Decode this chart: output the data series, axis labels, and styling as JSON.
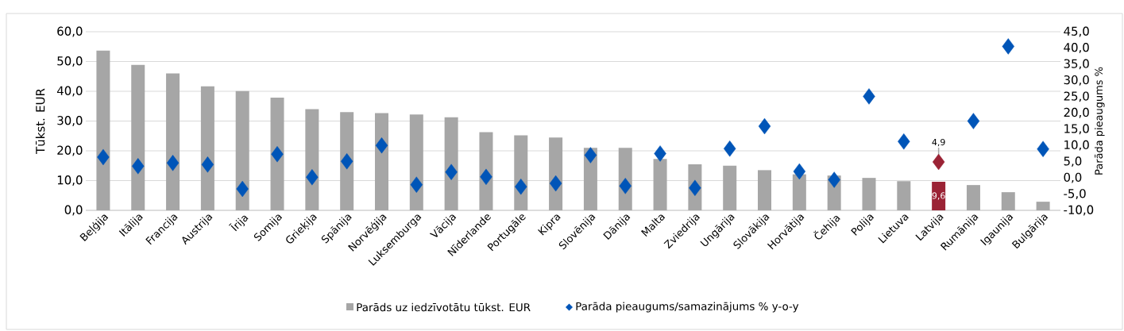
{
  "chart_data": {
    "type": "bar",
    "ylabel": "Tūkst. EUR",
    "y2label": "Parāda pieaugums %",
    "categories": [
      "Beļģija",
      "Itālija",
      "Francija",
      "Austrija",
      "Īrija",
      "Somija",
      "Grieķija",
      "Spānija",
      "Norvēģija",
      "Luksemburga",
      "Vācija",
      "Nīderlande",
      "Portugāle",
      "Kipra",
      "Slovēnija",
      "Dānija",
      "Malta",
      "Zviedrija",
      "Ungārija",
      "Slovākija",
      "Horvātija",
      "Čehija",
      "Polija",
      "Lietuva",
      "Latvija",
      "Rumānija",
      "Igaunija",
      "Bulgārija"
    ],
    "series": [
      {
        "name": "Parāds uz iedzīvotātu tūkst. EUR",
        "color": "#a6a6a6",
        "colors": [
          "#a6a6a6",
          "#a6a6a6",
          "#a6a6a6",
          "#a6a6a6",
          "#a6a6a6",
          "#a6a6a6",
          "#a6a6a6",
          "#a6a6a6",
          "#a6a6a6",
          "#a6a6a6",
          "#a6a6a6",
          "#a6a6a6",
          "#a6a6a6",
          "#a6a6a6",
          "#a6a6a6",
          "#a6a6a6",
          "#a6a6a6",
          "#a6a6a6",
          "#a6a6a6",
          "#a6a6a6",
          "#a6a6a6",
          "#a6a6a6",
          "#a6a6a6",
          "#a6a6a6",
          "#9b2335",
          "#a6a6a6",
          "#a6a6a6",
          "#a6a6a6"
        ],
        "values": [
          53.7,
          48.9,
          46.0,
          41.7,
          40.1,
          37.9,
          34.0,
          33.0,
          32.7,
          32.2,
          31.3,
          26.3,
          25.2,
          24.5,
          21.0,
          21.0,
          17.3,
          15.5,
          15.0,
          13.5,
          12.1,
          11.7,
          10.9,
          9.8,
          9.6,
          8.5,
          6.1,
          2.9
        ],
        "value_labels": [
          null,
          null,
          null,
          null,
          null,
          null,
          null,
          null,
          null,
          null,
          null,
          null,
          null,
          null,
          null,
          null,
          null,
          null,
          null,
          null,
          null,
          null,
          null,
          null,
          "9,6",
          null,
          null,
          null
        ]
      },
      {
        "name": "Parāda pieaugums/samazinājums % y-o-y",
        "type": "scatter",
        "axis": "y2",
        "marker": "diamond",
        "color": "#0055b8",
        "colors": [
          "#0055b8",
          "#0055b8",
          "#0055b8",
          "#0055b8",
          "#0055b8",
          "#0055b8",
          "#0055b8",
          "#0055b8",
          "#0055b8",
          "#0055b8",
          "#0055b8",
          "#0055b8",
          "#0055b8",
          "#0055b8",
          "#0055b8",
          "#0055b8",
          "#0055b8",
          "#0055b8",
          "#0055b8",
          "#0055b8",
          "#0055b8",
          "#0055b8",
          "#0055b8",
          "#0055b8",
          "#9b2335",
          "#0055b8",
          "#0055b8",
          "#0055b8"
        ],
        "values": [
          6.4,
          3.6,
          4.6,
          4.1,
          -3.4,
          7.3,
          0.2,
          5.1,
          10.0,
          -2.1,
          1.8,
          0.3,
          -2.7,
          -1.7,
          7.0,
          -2.5,
          7.5,
          -3.1,
          9.0,
          15.9,
          2.0,
          -0.6,
          25.1,
          11.2,
          4.9,
          17.5,
          40.5,
          8.9
        ],
        "value_labels": [
          null,
          null,
          null,
          null,
          null,
          null,
          null,
          null,
          null,
          null,
          null,
          null,
          null,
          null,
          null,
          null,
          null,
          null,
          null,
          null,
          null,
          null,
          null,
          null,
          "4,9",
          null,
          null,
          null
        ]
      }
    ],
    "ylim": [
      0,
      60
    ],
    "yticks": [
      {
        "value": 0,
        "label": "0,0"
      },
      {
        "value": 10,
        "label": "10,0"
      },
      {
        "value": 20,
        "label": "20,0"
      },
      {
        "value": 30,
        "label": "30,0"
      },
      {
        "value": 40,
        "label": "40,0"
      },
      {
        "value": 50,
        "label": "50,0"
      },
      {
        "value": 60,
        "label": "60,0"
      }
    ],
    "y2lim": [
      -10,
      45
    ],
    "y2ticks": [
      {
        "value": -10,
        "label": "-10,0"
      },
      {
        "value": -5,
        "label": "-5,0"
      },
      {
        "value": 0,
        "label": "0,0"
      },
      {
        "value": 5,
        "label": "5,0"
      },
      {
        "value": 10,
        "label": "10,0"
      },
      {
        "value": 15,
        "label": "15,0"
      },
      {
        "value": 20,
        "label": "20,0"
      },
      {
        "value": 25,
        "label": "25,0"
      },
      {
        "value": 30,
        "label": "30,0"
      },
      {
        "value": 35,
        "label": "35,0"
      },
      {
        "value": 40,
        "label": "40,0"
      },
      {
        "value": 45,
        "label": "45,0"
      }
    ],
    "grid": "y",
    "legend": "bottom"
  }
}
